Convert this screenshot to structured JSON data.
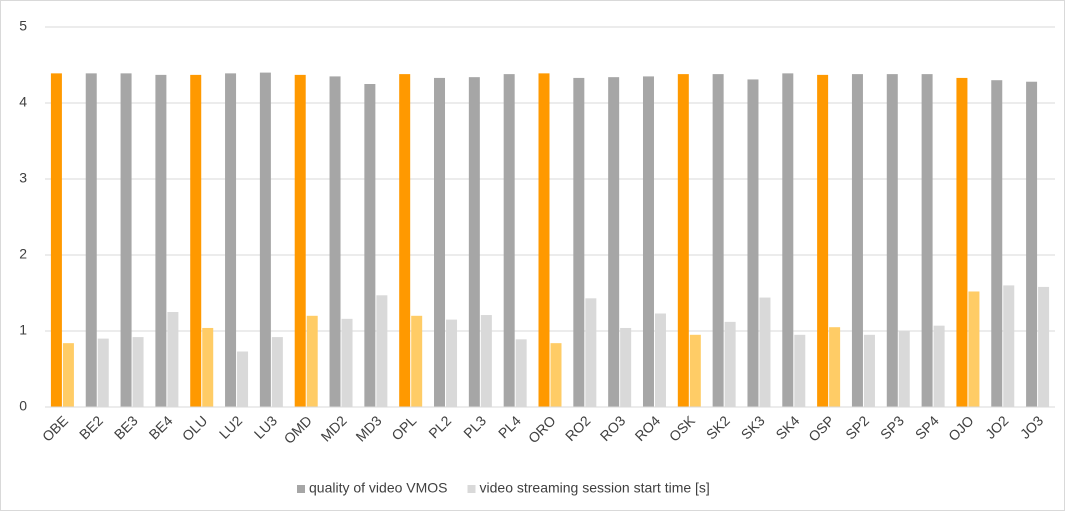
{
  "chart_data": {
    "type": "bar",
    "categories": [
      "OBE",
      "BE2",
      "BE3",
      "BE4",
      "OLU",
      "LU2",
      "LU3",
      "OMD",
      "MD2",
      "MD3",
      "OPL",
      "PL2",
      "PL3",
      "PL4",
      "ORO",
      "RO2",
      "RO3",
      "RO4",
      "OSK",
      "SK2",
      "SK3",
      "SK4",
      "OSP",
      "SP2",
      "SP3",
      "SP4",
      "OJO",
      "JO2",
      "JO3"
    ],
    "series": [
      {
        "name": "quality of video VMOS",
        "color": "#a6a6a6",
        "highlight_color": "#ff9900",
        "values": [
          4.39,
          4.39,
          4.39,
          4.37,
          4.37,
          4.39,
          4.4,
          4.37,
          4.35,
          4.25,
          4.38,
          4.33,
          4.34,
          4.38,
          4.39,
          4.33,
          4.34,
          4.35,
          4.38,
          4.38,
          4.31,
          4.39,
          4.37,
          4.38,
          4.38,
          4.38,
          4.33,
          4.3,
          4.28
        ]
      },
      {
        "name": "video streaming session start time [s]",
        "color": "#d9d9d9",
        "highlight_color": "#ffcc66",
        "values": [
          0.84,
          0.9,
          0.92,
          1.25,
          1.04,
          0.73,
          0.92,
          1.2,
          1.16,
          1.47,
          1.2,
          1.15,
          1.21,
          0.89,
          0.84,
          1.43,
          1.04,
          1.23,
          0.95,
          1.12,
          1.44,
          0.95,
          1.05,
          0.95,
          1.0,
          1.07,
          1.52,
          1.6,
          1.58
        ]
      }
    ],
    "highlighted": [
      0,
      4,
      7,
      10,
      14,
      18,
      22,
      26
    ],
    "ylim": [
      0,
      5
    ],
    "yticks": [
      0,
      1,
      2,
      3,
      4,
      5
    ],
    "grid": true,
    "legend": "bottom"
  }
}
